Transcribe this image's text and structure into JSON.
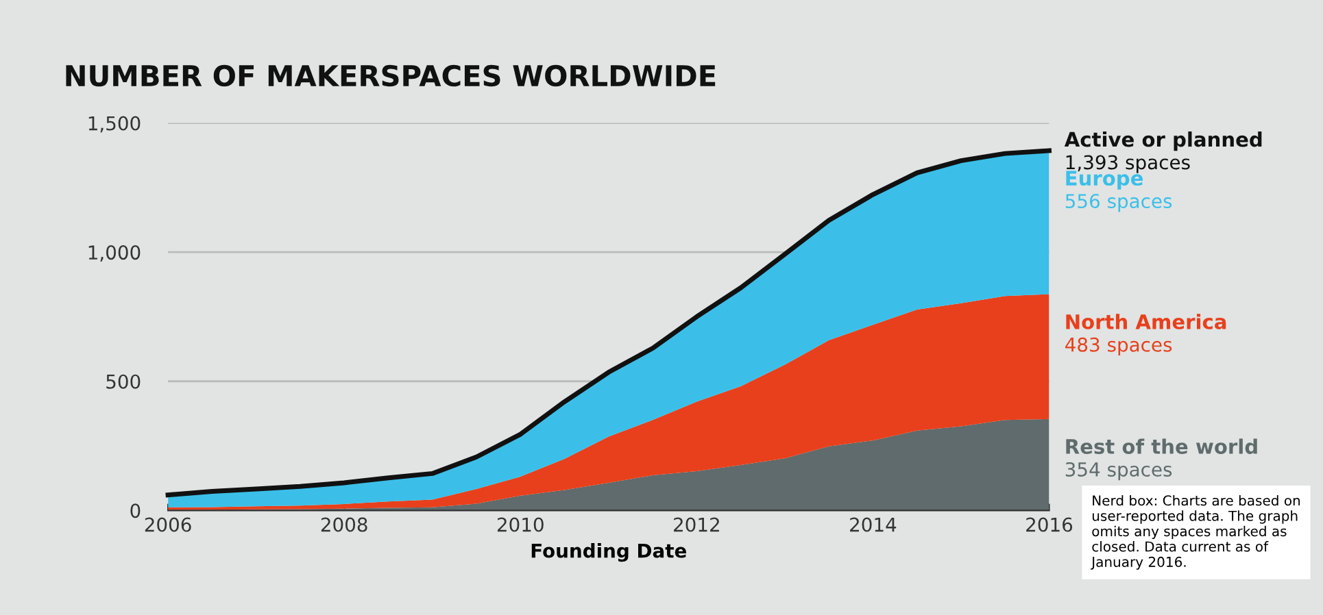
{
  "chart_data": {
    "type": "area",
    "title": "NUMBER OF MAKERSPACES WORLDWIDE",
    "xlabel": "Founding Date",
    "x": [
      2006,
      2006.5,
      2007,
      2007.5,
      2008,
      2008.5,
      2009,
      2009.5,
      2010,
      2010.5,
      2011,
      2011.5,
      2012,
      2012.5,
      2013,
      2013.5,
      2014,
      2014.5,
      2015,
      2015.5,
      2016
    ],
    "stacked": true,
    "series": [
      {
        "name": "Rest of the world",
        "color": "#5f6b6c",
        "values": [
          2,
          3,
          4,
          5,
          7,
          10,
          12,
          26,
          57,
          79,
          107,
          136,
          152,
          176,
          202,
          248,
          271,
          309,
          326,
          350,
          354
        ],
        "value_labels": [
          null,
          null,
          null,
          null,
          null,
          null,
          null,
          null,
          null,
          null,
          null,
          null,
          null,
          null,
          null,
          null,
          null,
          null,
          null,
          null,
          "354 spaces"
        ]
      },
      {
        "name": "North America",
        "color": "#e8401c",
        "values": [
          10,
          10,
          12,
          14,
          18,
          25,
          30,
          57,
          74,
          121,
          179,
          214,
          269,
          305,
          362,
          411,
          448,
          469,
          476,
          480,
          483
        ],
        "value_labels": [
          null,
          null,
          null,
          null,
          null,
          null,
          null,
          null,
          null,
          null,
          null,
          null,
          null,
          null,
          null,
          null,
          null,
          null,
          null,
          null,
          "483 spaces"
        ]
      },
      {
        "name": "Europe",
        "color": "#3bbfe8",
        "values": [
          48,
          61,
          67,
          74,
          82,
          91,
          101,
          124,
          164,
          221,
          249,
          278,
          329,
          381,
          428,
          464,
          504,
          529,
          552,
          552,
          556
        ],
        "value_labels": [
          null,
          null,
          null,
          null,
          null,
          null,
          null,
          null,
          null,
          null,
          null,
          null,
          null,
          null,
          null,
          null,
          null,
          null,
          null,
          null,
          "556 spaces"
        ]
      }
    ],
    "xlim": [
      2006,
      2016
    ],
    "xticks": [
      2006,
      2008,
      2010,
      2012,
      2014,
      2016
    ],
    "ylim": [
      0,
      1500
    ],
    "yticks": [
      0,
      500,
      {
        "value": 1000,
        "label": "1,000"
      },
      {
        "value": 1500,
        "label": "1,500"
      }
    ],
    "grid": "y",
    "legend": false,
    "annotations": [
      {
        "text": "Active or planned",
        "x": 2016,
        "y": 1393
      },
      {
        "text": "1,393 spaces",
        "x": 2016,
        "y": 1393
      },
      "Nerd box: Charts are based on user-reported data. The graph omits any spaces marked as closed. Data current as of January 2016."
    ]
  }
}
